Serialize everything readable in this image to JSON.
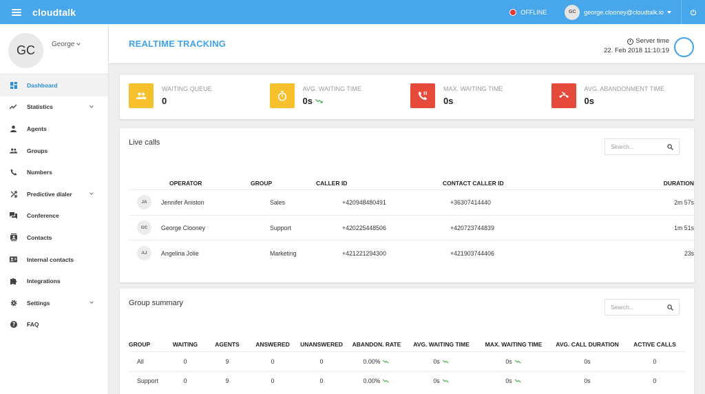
{
  "topbar": {
    "brand": "cloudtalk",
    "status": "OFFLINE",
    "status_color": "#e53935",
    "user_initials": "GC",
    "user_email": "george.clooney@cloudtalk.io",
    "accent": "#47a7ea"
  },
  "sidebar": {
    "profile_initials": "GC",
    "profile_name": "George",
    "items": [
      {
        "label": "Dashboard",
        "icon": "dashboard-icon"
      },
      {
        "label": "Statistics",
        "icon": "trending-icon"
      },
      {
        "label": "Agents",
        "icon": "person-icon"
      },
      {
        "label": "Groups",
        "icon": "group-icon"
      },
      {
        "label": "Numbers",
        "icon": "phone-icon"
      },
      {
        "label": "Predictive dialer",
        "icon": "shuffle-icon"
      },
      {
        "label": "Conference",
        "icon": "forum-icon"
      },
      {
        "label": "Contacts",
        "icon": "contacts-icon"
      },
      {
        "label": "Internal contacts",
        "icon": "contact-card-icon"
      },
      {
        "label": "Integrations",
        "icon": "puzzle-icon"
      },
      {
        "label": "Settings",
        "icon": "gear-icon"
      },
      {
        "label": "FAQ",
        "icon": "help-icon"
      }
    ]
  },
  "header": {
    "title": "REALTIME TRACKING",
    "server_time_label": "Server time",
    "server_time_value": "22. Feb 2018 11:10:19"
  },
  "stats": [
    {
      "label": "WAITING QUEUE",
      "value": "0",
      "color": "#f6c12c",
      "icon": "group-icon"
    },
    {
      "label": "AVG. WAITING TIME",
      "value": "0s",
      "color": "#f6c12c",
      "icon": "stopwatch-icon"
    },
    {
      "label": "MAX. WAITING TIME",
      "value": "0s",
      "color": "#e64a3b",
      "icon": "phone-paused-icon"
    },
    {
      "label": "AVG. ABANDONMENT TIME",
      "value": "0s",
      "color": "#e64a3b",
      "icon": "call-end-icon"
    }
  ],
  "live_calls": {
    "title": "Live calls",
    "search_placeholder": "Search...",
    "columns": [
      "OPERATOR",
      "GROUP",
      "CALLER ID",
      "CONTACT CALLER ID",
      "DURATION"
    ],
    "rows": [
      {
        "initials": "JA",
        "operator": "Jennifer Aniston",
        "group": "Sales",
        "caller_id": "+420948480491",
        "contact_caller_id": "+36307414440",
        "duration": "2m 57s"
      },
      {
        "initials": "GC",
        "operator": "George Clooney",
        "group": "Support",
        "caller_id": "+420225448506",
        "contact_caller_id": "+420723744839",
        "duration": "1m 51s"
      },
      {
        "initials": "AJ",
        "operator": "Angelina Jolie",
        "group": "Marketing",
        "caller_id": "+421221294300",
        "contact_caller_id": "+421903744406",
        "duration": "23s"
      }
    ]
  },
  "group_summary": {
    "title": "Group summary",
    "search_placeholder": "Search...",
    "columns": [
      "GROUP",
      "WAITING",
      "AGENTS",
      "ANSWERED",
      "UNANSWERED",
      "ABANDON. RATE",
      "AVG. WAITING TIME",
      "MAX. WAITING TIME",
      "AVG. CALL DURATION",
      "ACTIVE CALLS"
    ],
    "rows": [
      {
        "group": "All",
        "waiting": "0",
        "agents": "9",
        "answered": "0",
        "unanswered": "0",
        "abandon_rate": "0.00%",
        "avg_wait": "0s",
        "max_wait": "0s",
        "avg_call": "0s",
        "active": "0"
      },
      {
        "group": "Support",
        "waiting": "0",
        "agents": "9",
        "answered": "0",
        "unanswered": "0",
        "abandon_rate": "0.00%",
        "avg_wait": "0s",
        "max_wait": "0s",
        "avg_call": "0s",
        "active": "0"
      }
    ]
  }
}
